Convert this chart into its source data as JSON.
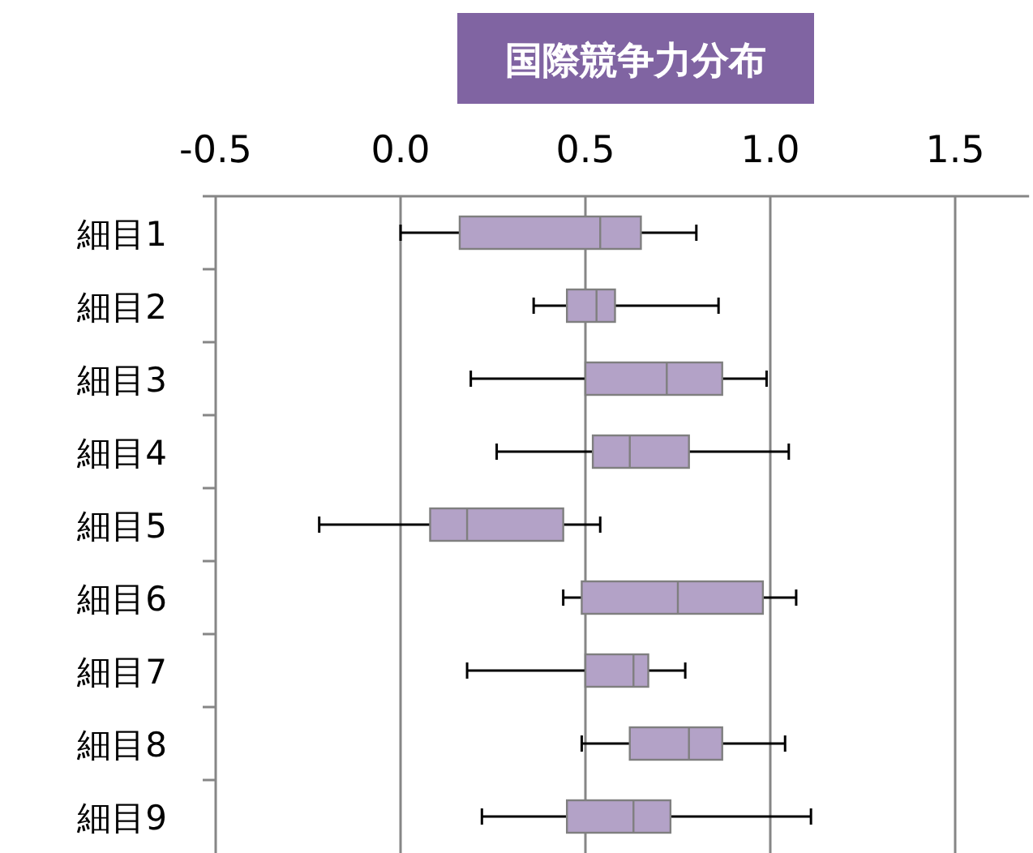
{
  "chart_data": {
    "type": "box",
    "orientation": "horizontal",
    "title": "国際競争力分布",
    "categories": [
      "細目1",
      "細目2",
      "細目3",
      "細目4",
      "細目5",
      "細目6",
      "細目7",
      "細目8",
      "細目9"
    ],
    "series": [
      {
        "color": "#b3a2c7",
        "boxes": [
          {
            "low": 0.0,
            "q1": 0.16,
            "median": 0.54,
            "q3": 0.65,
            "high": 0.8
          },
          {
            "low": 0.36,
            "q1": 0.45,
            "median": 0.53,
            "q3": 0.58,
            "high": 0.86
          },
          {
            "low": 0.19,
            "q1": 0.5,
            "median": 0.72,
            "q3": 0.87,
            "high": 0.99
          },
          {
            "low": 0.26,
            "q1": 0.52,
            "median": 0.62,
            "q3": 0.78,
            "high": 1.05
          },
          {
            "low": -0.22,
            "q1": 0.08,
            "median": 0.18,
            "q3": 0.44,
            "high": 0.54
          },
          {
            "low": 0.44,
            "q1": 0.49,
            "median": 0.75,
            "q3": 0.98,
            "high": 1.07
          },
          {
            "low": 0.18,
            "q1": 0.5,
            "median": 0.63,
            "q3": 0.67,
            "high": 0.77
          },
          {
            "low": 0.49,
            "q1": 0.62,
            "median": 0.78,
            "q3": 0.87,
            "high": 1.04
          },
          {
            "low": 0.22,
            "q1": 0.45,
            "median": 0.63,
            "q3": 0.73,
            "high": 1.11
          }
        ]
      }
    ],
    "xlim": [
      -0.5,
      1.7
    ],
    "xticks": [
      {
        "value": -0.5,
        "label": "-0.5"
      },
      {
        "value": 0,
        "label": "0.0"
      },
      {
        "value": 0.5,
        "label": "0.5"
      },
      {
        "value": 1,
        "label": "1.0"
      },
      {
        "value": 1.5,
        "label": "1.5"
      }
    ],
    "grid": "x"
  }
}
